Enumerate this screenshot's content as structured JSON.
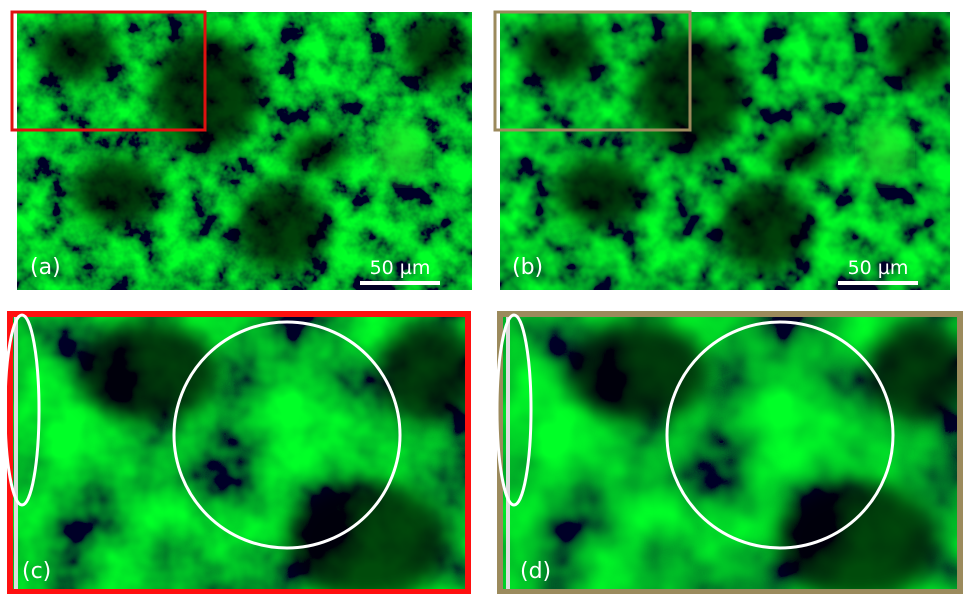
{
  "panels": [
    {
      "label": "(a)",
      "scale_bar": "50 µm"
    },
    {
      "label": "(b)",
      "scale_bar": "50 µm"
    },
    {
      "label": "(c)"
    },
    {
      "label": "(d)"
    }
  ]
}
